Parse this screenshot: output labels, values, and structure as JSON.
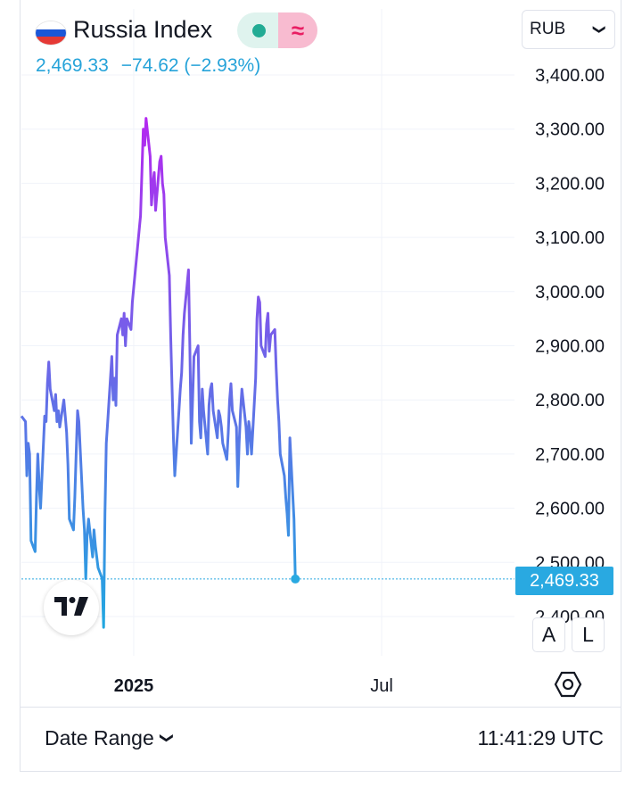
{
  "header": {
    "title": "Russia Index",
    "flag_icon": "russia-flag-icon",
    "last_price": "2,469.33",
    "change": "−74.62 (−2.93%)",
    "change_color": "#26a3d9",
    "badge_icons": [
      "market-open-dot-icon",
      "delayed-data-icon"
    ],
    "badge_wave_glyph": "≈"
  },
  "currency_select": {
    "value": "RUB",
    "chev": "⌄"
  },
  "scale_buttons": {
    "auto": "A",
    "log": "L"
  },
  "footer": {
    "date_range_label": "Date Range",
    "date_range_chev": "⌄",
    "time": "11:41:29 UTC"
  },
  "colors": {
    "line_low": "#1fa9e0",
    "line_high": "#b428f0",
    "grid": "#f0f3fa",
    "accent": "#29a9e1"
  },
  "chart_data": {
    "type": "line",
    "title": "Russia Index",
    "currency": "RUB",
    "y_ticks": [
      "3,400.00",
      "3,300.00",
      "3,200.00",
      "3,100.00",
      "3,000.00",
      "2,900.00",
      "2,800.00",
      "2,700.00",
      "2,600.00",
      "2,500.00",
      "2,400.00"
    ],
    "ylim": [
      2370,
      3440
    ],
    "x_ticks": [
      {
        "label": "2025",
        "x": "2025-01-01",
        "bold": true
      },
      {
        "label": "Jul",
        "x": "2025-07-01",
        "bold": false
      }
    ],
    "xlim": [
      "2024-10-11",
      "2025-10-06"
    ],
    "last_value": 2469.33,
    "last_label": "2,469.33",
    "grid": true,
    "series": [
      {
        "points": [
          [
            "2024-10-11",
            2770
          ],
          [
            "2024-10-14",
            2760
          ],
          [
            "2024-10-15",
            2660
          ],
          [
            "2024-10-16",
            2720
          ],
          [
            "2024-10-17",
            2700
          ],
          [
            "2024-10-18",
            2540
          ],
          [
            "2024-10-21",
            2520
          ],
          [
            "2024-10-22",
            2620
          ],
          [
            "2024-10-23",
            2700
          ],
          [
            "2024-10-24",
            2640
          ],
          [
            "2024-10-25",
            2600
          ],
          [
            "2024-10-28",
            2770
          ],
          [
            "2024-10-29",
            2760
          ],
          [
            "2024-10-30",
            2830
          ],
          [
            "2024-10-31",
            2870
          ],
          [
            "2024-11-01",
            2820
          ],
          [
            "2024-11-04",
            2780
          ],
          [
            "2024-11-05",
            2810
          ],
          [
            "2024-11-06",
            2760
          ],
          [
            "2024-11-07",
            2780
          ],
          [
            "2024-11-08",
            2750
          ],
          [
            "2024-11-11",
            2800
          ],
          [
            "2024-11-12",
            2770
          ],
          [
            "2024-11-13",
            2740
          ],
          [
            "2024-11-14",
            2680
          ],
          [
            "2024-11-15",
            2580
          ],
          [
            "2024-11-18",
            2560
          ],
          [
            "2024-11-19",
            2620
          ],
          [
            "2024-11-20",
            2700
          ],
          [
            "2024-11-21",
            2780
          ],
          [
            "2024-11-22",
            2760
          ],
          [
            "2024-11-25",
            2600
          ],
          [
            "2024-11-26",
            2560
          ],
          [
            "2024-11-27",
            2470
          ],
          [
            "2024-11-28",
            2550
          ],
          [
            "2024-11-29",
            2580
          ],
          [
            "2024-12-02",
            2510
          ],
          [
            "2024-12-03",
            2560
          ],
          [
            "2024-12-04",
            2530
          ],
          [
            "2024-12-05",
            2510
          ],
          [
            "2024-12-06",
            2490
          ],
          [
            "2024-12-09",
            2470
          ],
          [
            "2024-12-10",
            2380
          ],
          [
            "2024-12-11",
            2590
          ],
          [
            "2024-12-12",
            2720
          ],
          [
            "2024-12-13",
            2760
          ],
          [
            "2024-12-16",
            2880
          ],
          [
            "2024-12-17",
            2800
          ],
          [
            "2024-12-18",
            2840
          ],
          [
            "2024-12-19",
            2790
          ],
          [
            "2024-12-20",
            2920
          ],
          [
            "2024-12-23",
            2950
          ],
          [
            "2024-12-24",
            2920
          ],
          [
            "2024-12-25",
            2960
          ],
          [
            "2024-12-26",
            2900
          ],
          [
            "2024-12-27",
            2950
          ],
          [
            "2024-12-30",
            2930
          ],
          [
            "2024-12-31",
            2980
          ],
          [
            "2025-01-03",
            3060
          ],
          [
            "2025-01-06",
            3140
          ],
          [
            "2025-01-08",
            3300
          ],
          [
            "2025-01-09",
            3270
          ],
          [
            "2025-01-10",
            3320
          ],
          [
            "2025-01-13",
            3250
          ],
          [
            "2025-01-14",
            3160
          ],
          [
            "2025-01-15",
            3200
          ],
          [
            "2025-01-16",
            3220
          ],
          [
            "2025-01-17",
            3150
          ],
          [
            "2025-01-20",
            3240
          ],
          [
            "2025-01-21",
            3250
          ],
          [
            "2025-01-22",
            3200
          ],
          [
            "2025-01-23",
            3180
          ],
          [
            "2025-01-24",
            3100
          ],
          [
            "2025-01-27",
            3030
          ],
          [
            "2025-01-28",
            2920
          ],
          [
            "2025-01-29",
            2820
          ],
          [
            "2025-01-30",
            2730
          ],
          [
            "2025-01-31",
            2660
          ],
          [
            "2025-02-03",
            2780
          ],
          [
            "2025-02-04",
            2820
          ],
          [
            "2025-02-05",
            2850
          ],
          [
            "2025-02-06",
            2920
          ],
          [
            "2025-02-07",
            2960
          ],
          [
            "2025-02-10",
            3040
          ],
          [
            "2025-02-11",
            2900
          ],
          [
            "2025-02-12",
            2720
          ],
          [
            "2025-02-13",
            2800
          ],
          [
            "2025-02-14",
            2880
          ],
          [
            "2025-02-17",
            2900
          ],
          [
            "2025-02-18",
            2760
          ],
          [
            "2025-02-19",
            2730
          ],
          [
            "2025-02-20",
            2820
          ],
          [
            "2025-02-21",
            2780
          ],
          [
            "2025-02-24",
            2700
          ],
          [
            "2025-02-25",
            2790
          ],
          [
            "2025-02-26",
            2820
          ],
          [
            "2025-02-27",
            2830
          ],
          [
            "2025-02-28",
            2780
          ],
          [
            "2025-03-03",
            2730
          ],
          [
            "2025-03-04",
            2780
          ],
          [
            "2025-03-05",
            2770
          ],
          [
            "2025-03-06",
            2750
          ],
          [
            "2025-03-07",
            2720
          ],
          [
            "2025-03-10",
            2690
          ],
          [
            "2025-03-11",
            2740
          ],
          [
            "2025-03-12",
            2800
          ],
          [
            "2025-03-13",
            2830
          ],
          [
            "2025-03-14",
            2780
          ],
          [
            "2025-03-17",
            2750
          ],
          [
            "2025-03-18",
            2640
          ],
          [
            "2025-03-19",
            2720
          ],
          [
            "2025-03-20",
            2780
          ],
          [
            "2025-03-21",
            2820
          ],
          [
            "2025-03-24",
            2750
          ],
          [
            "2025-03-25",
            2700
          ],
          [
            "2025-03-26",
            2760
          ],
          [
            "2025-03-27",
            2740
          ],
          [
            "2025-03-28",
            2700
          ],
          [
            "2025-03-31",
            2840
          ],
          [
            "2025-04-01",
            2950
          ],
          [
            "2025-04-02",
            2990
          ],
          [
            "2025-04-03",
            2980
          ],
          [
            "2025-04-04",
            2900
          ],
          [
            "2025-04-07",
            2880
          ],
          [
            "2025-04-08",
            2940
          ],
          [
            "2025-04-09",
            2960
          ],
          [
            "2025-04-10",
            2890
          ],
          [
            "2025-04-11",
            2920
          ],
          [
            "2025-04-14",
            2930
          ],
          [
            "2025-04-15",
            2860
          ],
          [
            "2025-04-16",
            2800
          ],
          [
            "2025-04-17",
            2760
          ],
          [
            "2025-04-18",
            2700
          ],
          [
            "2025-04-21",
            2660
          ],
          [
            "2025-04-22",
            2620
          ],
          [
            "2025-04-23",
            2590
          ],
          [
            "2025-04-24",
            2550
          ],
          [
            "2025-04-25",
            2730
          ],
          [
            "2025-04-28",
            2580
          ],
          [
            "2025-04-29",
            2470
          ]
        ]
      }
    ]
  }
}
